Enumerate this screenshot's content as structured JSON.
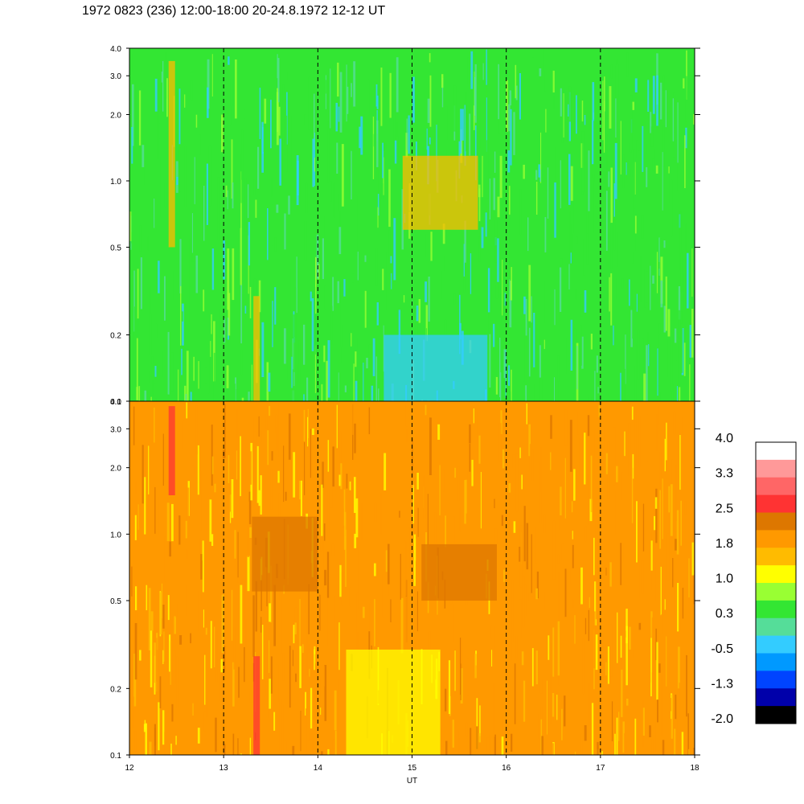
{
  "title": "1972 0823 (236) 12:00-18:00 20-24.8.1972  12-12 UT",
  "chart_data": [
    {
      "type": "heatmap",
      "panel": "upper",
      "x": {
        "label": "",
        "range": [
          12,
          18
        ],
        "ticks": [
          12,
          13,
          14,
          15,
          16,
          17,
          18
        ],
        "tick_labels": []
      },
      "y": {
        "label": "",
        "scale": "log",
        "range": [
          0.1,
          4.0
        ],
        "ticks": [
          0.1,
          0.2,
          0.5,
          1.0,
          2.0,
          3.0,
          4.0
        ],
        "tick_labels": [
          "0.1",
          "0.2",
          "0.5",
          "1.0",
          "2.0",
          "3.0",
          "4.0"
        ]
      },
      "dashed_verticals_at": [
        13,
        14,
        15,
        16,
        17
      ],
      "dominant_color": "#33e633",
      "features": [
        {
          "x": 12.45,
          "y_range": [
            0.5,
            3.5
          ],
          "color": "#ffbb00"
        },
        {
          "x": 13.35,
          "y_range": [
            0.1,
            0.3
          ],
          "color": "#ffbb00"
        },
        {
          "x_range": [
            14.7,
            15.8
          ],
          "y_range": [
            0.1,
            0.2
          ],
          "color": "#33ccff"
        },
        {
          "x_range": [
            14.9,
            15.7
          ],
          "y_range": [
            0.6,
            1.3
          ],
          "color": "#ffbb00"
        }
      ]
    },
    {
      "type": "heatmap",
      "panel": "lower",
      "x": {
        "label": "UT",
        "range": [
          12,
          18
        ],
        "ticks": [
          12,
          13,
          14,
          15,
          16,
          17,
          18
        ],
        "tick_labels": [
          "12",
          "13",
          "14",
          "15",
          "16",
          "17",
          "18"
        ]
      },
      "y": {
        "label": "",
        "scale": "log",
        "range": [
          0.1,
          4.0
        ],
        "ticks": [
          0.1,
          0.2,
          0.5,
          1.0,
          2.0,
          3.0,
          4.0
        ],
        "tick_labels": [
          "0.1",
          "0.2",
          "0.5",
          "1.0",
          "2.0",
          "3.0",
          "4.0"
        ]
      },
      "dashed_verticals_at": [
        13,
        14,
        15,
        16,
        17
      ],
      "dominant_color": "#ff9900",
      "features": [
        {
          "x": 12.45,
          "y_range": [
            1.5,
            3.8
          ],
          "color": "#ff3333"
        },
        {
          "x": 13.35,
          "y_range": [
            0.1,
            0.28
          ],
          "color": "#ff3333"
        },
        {
          "x_range": [
            13.3,
            14.0
          ],
          "y_range": [
            0.55,
            1.2
          ],
          "color": "#dd7700"
        },
        {
          "x_range": [
            15.1,
            15.9
          ],
          "y_range": [
            0.5,
            0.9
          ],
          "color": "#dd7700"
        },
        {
          "x_range": [
            14.3,
            15.3
          ],
          "y_range": [
            0.1,
            0.3
          ],
          "color": "#ffff00"
        }
      ]
    }
  ],
  "colorbar": {
    "labels": [
      "4.0",
      "3.3",
      "2.5",
      "1.8",
      "1.0",
      "0.3",
      "-0.5",
      "-1.3",
      "-2.0"
    ],
    "colors_top_to_bottom": [
      "#ffffff",
      "#ff9999",
      "#ff6666",
      "#ff3333",
      "#dd7700",
      "#ff9900",
      "#ffbb00",
      "#ffff00",
      "#99ff33",
      "#33e633",
      "#55dd99",
      "#33ccff",
      "#0099ff",
      "#0044ff",
      "#0000aa",
      "#000000"
    ]
  }
}
